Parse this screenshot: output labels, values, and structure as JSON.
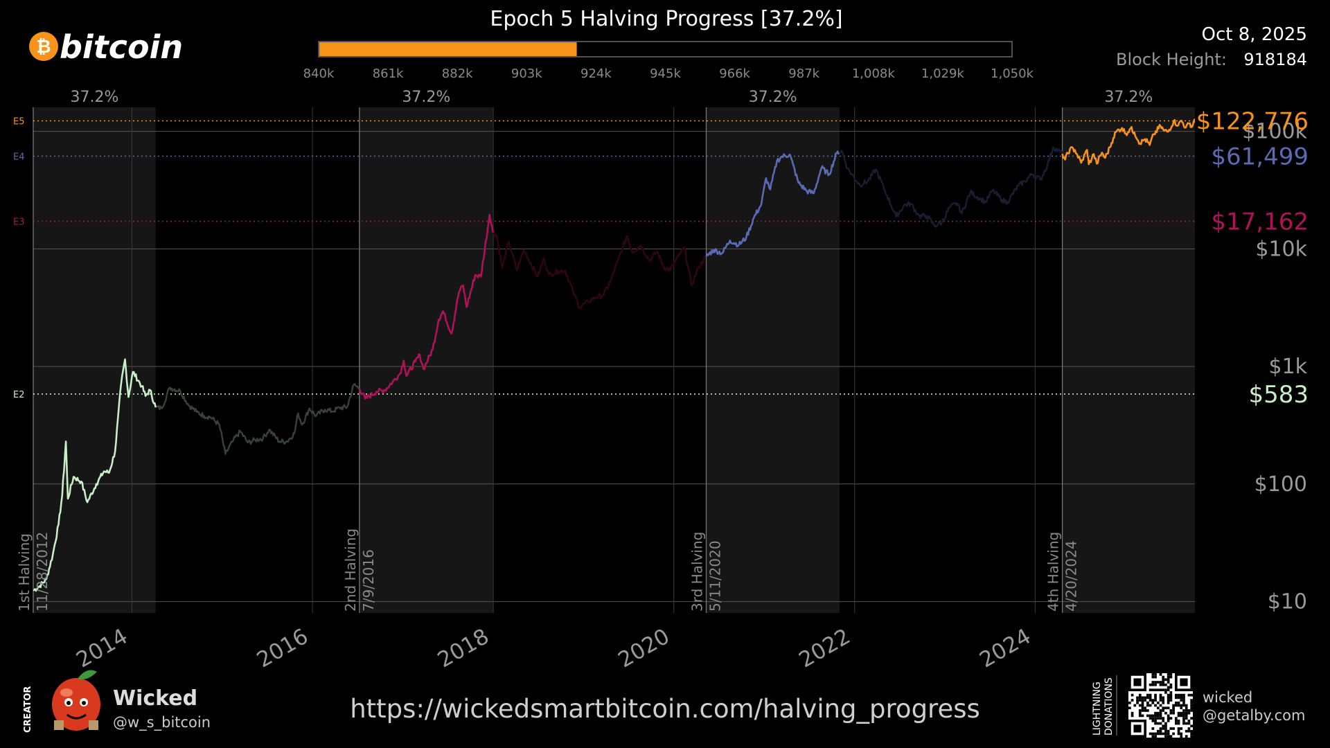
{
  "header": {
    "brand": "bitcoin",
    "title": "Epoch 5 Halving Progress [37.2%]",
    "date": "Oct 8, 2025",
    "block_height_label": "Block Height:",
    "block_height": "918184"
  },
  "progress": {
    "value": 0.372,
    "ticks": [
      "840k",
      "861k",
      "882k",
      "903k",
      "924k",
      "945k",
      "966k",
      "987k",
      "1,008k",
      "1,029k",
      "1,050k"
    ]
  },
  "footer": {
    "creator_label": "CREATOR",
    "creator_name": "Wicked",
    "creator_handle": "@w_s_bitcoin",
    "url": "https://wickedsmartbitcoin.com/halving_progress",
    "lightning_label_1": "LIGHTNING",
    "lightning_label_2": "DONATIONS",
    "lightning_addr_1": "wicked",
    "lightning_addr_2": "@getalby.com"
  },
  "colors": {
    "epoch2": "#c8f0c8",
    "epoch3": "#b0125a",
    "epoch4": "#5a6bb5",
    "epoch5": "#f7931a",
    "grid": "#555555",
    "shade": "#161616",
    "tick": "#9a9a9a"
  },
  "chart_data": {
    "type": "line",
    "y_scale": "log",
    "ylim": [
      8,
      160000
    ],
    "xlim": [
      "2012-11-28",
      "2025-10-08"
    ],
    "yticks": [
      {
        "value": 10,
        "label": "$10"
      },
      {
        "value": 100,
        "label": "$100"
      },
      {
        "value": 1000,
        "label": "$1k"
      },
      {
        "value": 10000,
        "label": "$10k"
      },
      {
        "value": 100000,
        "label": "$100k"
      }
    ],
    "xticks": [
      {
        "date": "2014-01-01",
        "label": "2014"
      },
      {
        "date": "2016-01-01",
        "label": "2016"
      },
      {
        "date": "2018-01-01",
        "label": "2018"
      },
      {
        "date": "2020-01-01",
        "label": "2020"
      },
      {
        "date": "2022-01-01",
        "label": "2022"
      },
      {
        "date": "2024-01-01",
        "label": "2024"
      }
    ],
    "halvings": [
      {
        "date": "2012-11-28",
        "name": "1st Halving",
        "date_label": "11/28/2012"
      },
      {
        "date": "2016-07-09",
        "name": "2nd Halving",
        "date_label": "7/9/2016"
      },
      {
        "date": "2020-05-11",
        "name": "3rd Halving",
        "date_label": "5/11/2020"
      },
      {
        "date": "2024-04-20",
        "name": "4th Halving",
        "date_label": "4/20/2024"
      }
    ],
    "progress_bands": [
      {
        "start": "2012-11-28",
        "end": "2014-04-07",
        "label": "37.2%"
      },
      {
        "start": "2016-07-09",
        "end": "2017-12-31",
        "label": "37.2%"
      },
      {
        "start": "2020-05-11",
        "end": "2021-11-01",
        "label": "37.2%"
      },
      {
        "start": "2024-04-20",
        "end": "2025-10-08",
        "label": "37.2%"
      }
    ],
    "epoch_levels": [
      {
        "tag": "E2",
        "price": 583,
        "label": "$583",
        "color": "#c8f0c8"
      },
      {
        "tag": "E3",
        "price": 17162,
        "label": "$17,162",
        "color": "#b0125a"
      },
      {
        "tag": "E4",
        "price": 61499,
        "label": "$61,499",
        "color": "#5a6bb5"
      },
      {
        "tag": "E5",
        "price": 122776,
        "label": "$122,776",
        "color": "#f7931a"
      }
    ],
    "series": [
      {
        "epoch": 2,
        "color": "#c8f0c8",
        "highlight_end": "2014-04-07",
        "points": [
          [
            "2012-11-28",
            12.4
          ],
          [
            "2012-12-20",
            13.3
          ],
          [
            "2013-01-20",
            15.5
          ],
          [
            "2013-02-15",
            25
          ],
          [
            "2013-03-10",
            45
          ],
          [
            "2013-03-25",
            80
          ],
          [
            "2013-04-09",
            230
          ],
          [
            "2013-04-17",
            75
          ],
          [
            "2013-05-10",
            115
          ],
          [
            "2013-06-10",
            105
          ],
          [
            "2013-07-05",
            70
          ],
          [
            "2013-08-10",
            100
          ],
          [
            "2013-09-10",
            128
          ],
          [
            "2013-10-01",
            125
          ],
          [
            "2013-10-25",
            190
          ],
          [
            "2013-11-18",
            700
          ],
          [
            "2013-12-04",
            1150
          ],
          [
            "2013-12-18",
            550
          ],
          [
            "2014-01-05",
            900
          ],
          [
            "2014-02-10",
            680
          ],
          [
            "2014-02-25",
            560
          ],
          [
            "2014-03-15",
            630
          ],
          [
            "2014-04-07",
            450
          ],
          [
            "2014-05-01",
            440
          ],
          [
            "2014-06-03",
            660
          ],
          [
            "2014-07-15",
            620
          ],
          [
            "2014-08-18",
            470
          ],
          [
            "2014-09-20",
            410
          ],
          [
            "2014-10-20",
            380
          ],
          [
            "2014-11-15",
            370
          ],
          [
            "2014-12-20",
            320
          ],
          [
            "2015-01-14",
            180
          ],
          [
            "2015-02-15",
            235
          ],
          [
            "2015-03-15",
            280
          ],
          [
            "2015-04-15",
            225
          ],
          [
            "2015-05-15",
            237
          ],
          [
            "2015-06-15",
            245
          ],
          [
            "2015-07-10",
            290
          ],
          [
            "2015-08-20",
            230
          ],
          [
            "2015-09-20",
            230
          ],
          [
            "2015-10-20",
            270
          ],
          [
            "2015-11-04",
            400
          ],
          [
            "2015-11-20",
            320
          ],
          [
            "2015-12-20",
            440
          ],
          [
            "2016-01-15",
            380
          ],
          [
            "2016-02-20",
            430
          ],
          [
            "2016-03-20",
            415
          ],
          [
            "2016-04-20",
            445
          ],
          [
            "2016-05-20",
            450
          ],
          [
            "2016-06-16",
            700
          ],
          [
            "2016-07-09",
            650
          ]
        ]
      },
      {
        "epoch": 3,
        "color": "#b0125a",
        "highlight_end": "2017-12-31",
        "points": [
          [
            "2016-07-09",
            650
          ],
          [
            "2016-08-02",
            530
          ],
          [
            "2016-09-15",
            610
          ],
          [
            "2016-10-20",
            630
          ],
          [
            "2016-11-20",
            740
          ],
          [
            "2016-12-20",
            870
          ],
          [
            "2017-01-04",
            1120
          ],
          [
            "2017-01-15",
            830
          ],
          [
            "2017-02-20",
            1100
          ],
          [
            "2017-03-10",
            1250
          ],
          [
            "2017-03-25",
            950
          ],
          [
            "2017-05-01",
            1400
          ],
          [
            "2017-05-25",
            2500
          ],
          [
            "2017-06-12",
            2950
          ],
          [
            "2017-07-16",
            1900
          ],
          [
            "2017-08-15",
            4300
          ],
          [
            "2017-09-01",
            4900
          ],
          [
            "2017-09-15",
            3200
          ],
          [
            "2017-10-20",
            6000
          ],
          [
            "2017-11-12",
            5800
          ],
          [
            "2017-12-17",
            19500
          ],
          [
            "2017-12-31",
            13800
          ],
          [
            "2018-01-15",
            13000
          ],
          [
            "2018-02-06",
            6900
          ],
          [
            "2018-03-05",
            11500
          ],
          [
            "2018-04-06",
            6600
          ],
          [
            "2018-05-05",
            9800
          ],
          [
            "2018-06-29",
            5800
          ],
          [
            "2018-07-25",
            8300
          ],
          [
            "2018-08-14",
            6000
          ],
          [
            "2018-09-20",
            6500
          ],
          [
            "2018-10-20",
            6500
          ],
          [
            "2018-11-20",
            4300
          ],
          [
            "2018-12-15",
            3200
          ],
          [
            "2019-01-20",
            3550
          ],
          [
            "2019-02-20",
            3900
          ],
          [
            "2019-03-20",
            4000
          ],
          [
            "2019-04-20",
            5300
          ],
          [
            "2019-05-20",
            8000
          ],
          [
            "2019-06-26",
            12900
          ],
          [
            "2019-07-17",
            9400
          ],
          [
            "2019-08-20",
            10700
          ],
          [
            "2019-09-24",
            8000
          ],
          [
            "2019-10-26",
            9500
          ],
          [
            "2019-11-22",
            7000
          ],
          [
            "2019-12-18",
            6600
          ],
          [
            "2020-01-20",
            8700
          ],
          [
            "2020-02-13",
            10300
          ],
          [
            "2020-03-12",
            4900
          ],
          [
            "2020-04-10",
            7000
          ],
          [
            "2020-05-11",
            8600
          ]
        ]
      },
      {
        "epoch": 4,
        "color": "#5a6bb5",
        "highlight_end": "2021-11-01",
        "points": [
          [
            "2020-05-11",
            8600
          ],
          [
            "2020-06-10",
            9800
          ],
          [
            "2020-07-15",
            9200
          ],
          [
            "2020-08-15",
            11800
          ],
          [
            "2020-09-20",
            10800
          ],
          [
            "2020-10-20",
            12500
          ],
          [
            "2020-11-20",
            18500
          ],
          [
            "2020-12-20",
            24000
          ],
          [
            "2021-01-08",
            40000
          ],
          [
            "2021-01-25",
            32000
          ],
          [
            "2021-02-21",
            56000
          ],
          [
            "2021-03-13",
            61000
          ],
          [
            "2021-04-14",
            63500
          ],
          [
            "2021-05-19",
            36500
          ],
          [
            "2021-06-22",
            31000
          ],
          [
            "2021-07-20",
            29800
          ],
          [
            "2021-08-20",
            49000
          ],
          [
            "2021-09-20",
            43000
          ],
          [
            "2021-10-20",
            65000
          ],
          [
            "2021-11-10",
            68500
          ],
          [
            "2021-12-04",
            48000
          ],
          [
            "2022-01-22",
            35000
          ],
          [
            "2022-02-25",
            38000
          ],
          [
            "2022-03-28",
            47500
          ],
          [
            "2022-05-12",
            28500
          ],
          [
            "2022-06-18",
            18800
          ],
          [
            "2022-07-20",
            23500
          ],
          [
            "2022-08-15",
            24300
          ],
          [
            "2022-09-20",
            19000
          ],
          [
            "2022-10-20",
            19100
          ],
          [
            "2022-11-21",
            15700
          ],
          [
            "2022-12-20",
            16800
          ],
          [
            "2023-01-20",
            22500
          ],
          [
            "2023-02-20",
            24500
          ],
          [
            "2023-03-10",
            20000
          ],
          [
            "2023-04-14",
            30500
          ],
          [
            "2023-05-20",
            27000
          ],
          [
            "2023-06-15",
            25000
          ],
          [
            "2023-07-13",
            31500
          ],
          [
            "2023-08-20",
            26000
          ],
          [
            "2023-09-11",
            25000
          ],
          [
            "2023-10-25",
            34500
          ],
          [
            "2023-11-20",
            37500
          ],
          [
            "2023-12-20",
            43500
          ],
          [
            "2024-01-23",
            39000
          ],
          [
            "2024-02-20",
            52000
          ],
          [
            "2024-03-14",
            73000
          ],
          [
            "2024-04-20",
            64500
          ]
        ]
      },
      {
        "epoch": 5,
        "color": "#f7931a",
        "highlight_end": "2025-10-08",
        "points": [
          [
            "2024-04-20",
            64500
          ],
          [
            "2024-05-01",
            57500
          ],
          [
            "2024-05-21",
            71000
          ],
          [
            "2024-06-10",
            69500
          ],
          [
            "2024-07-05",
            54000
          ],
          [
            "2024-07-29",
            69500
          ],
          [
            "2024-08-05",
            52500
          ],
          [
            "2024-08-25",
            64000
          ],
          [
            "2024-09-06",
            53000
          ],
          [
            "2024-09-27",
            66000
          ],
          [
            "2024-10-10",
            59500
          ],
          [
            "2024-10-29",
            73000
          ],
          [
            "2024-11-12",
            88000
          ],
          [
            "2024-11-22",
            98500
          ],
          [
            "2024-12-17",
            107000
          ],
          [
            "2025-01-02",
            95500
          ],
          [
            "2025-01-21",
            106000
          ],
          [
            "2025-02-05",
            98000
          ],
          [
            "2025-02-28",
            79000
          ],
          [
            "2025-03-20",
            86000
          ],
          [
            "2025-04-08",
            76500
          ],
          [
            "2025-04-25",
            94500
          ],
          [
            "2025-05-22",
            111000
          ],
          [
            "2025-06-05",
            101000
          ],
          [
            "2025-06-22",
            99500
          ],
          [
            "2025-07-14",
            122000
          ],
          [
            "2025-08-02",
            113000
          ],
          [
            "2025-08-14",
            123500
          ],
          [
            "2025-09-01",
            108000
          ],
          [
            "2025-09-18",
            117000
          ],
          [
            "2025-09-26",
            109000
          ],
          [
            "2025-10-06",
            125500
          ],
          [
            "2025-10-08",
            122776
          ]
        ]
      }
    ]
  }
}
